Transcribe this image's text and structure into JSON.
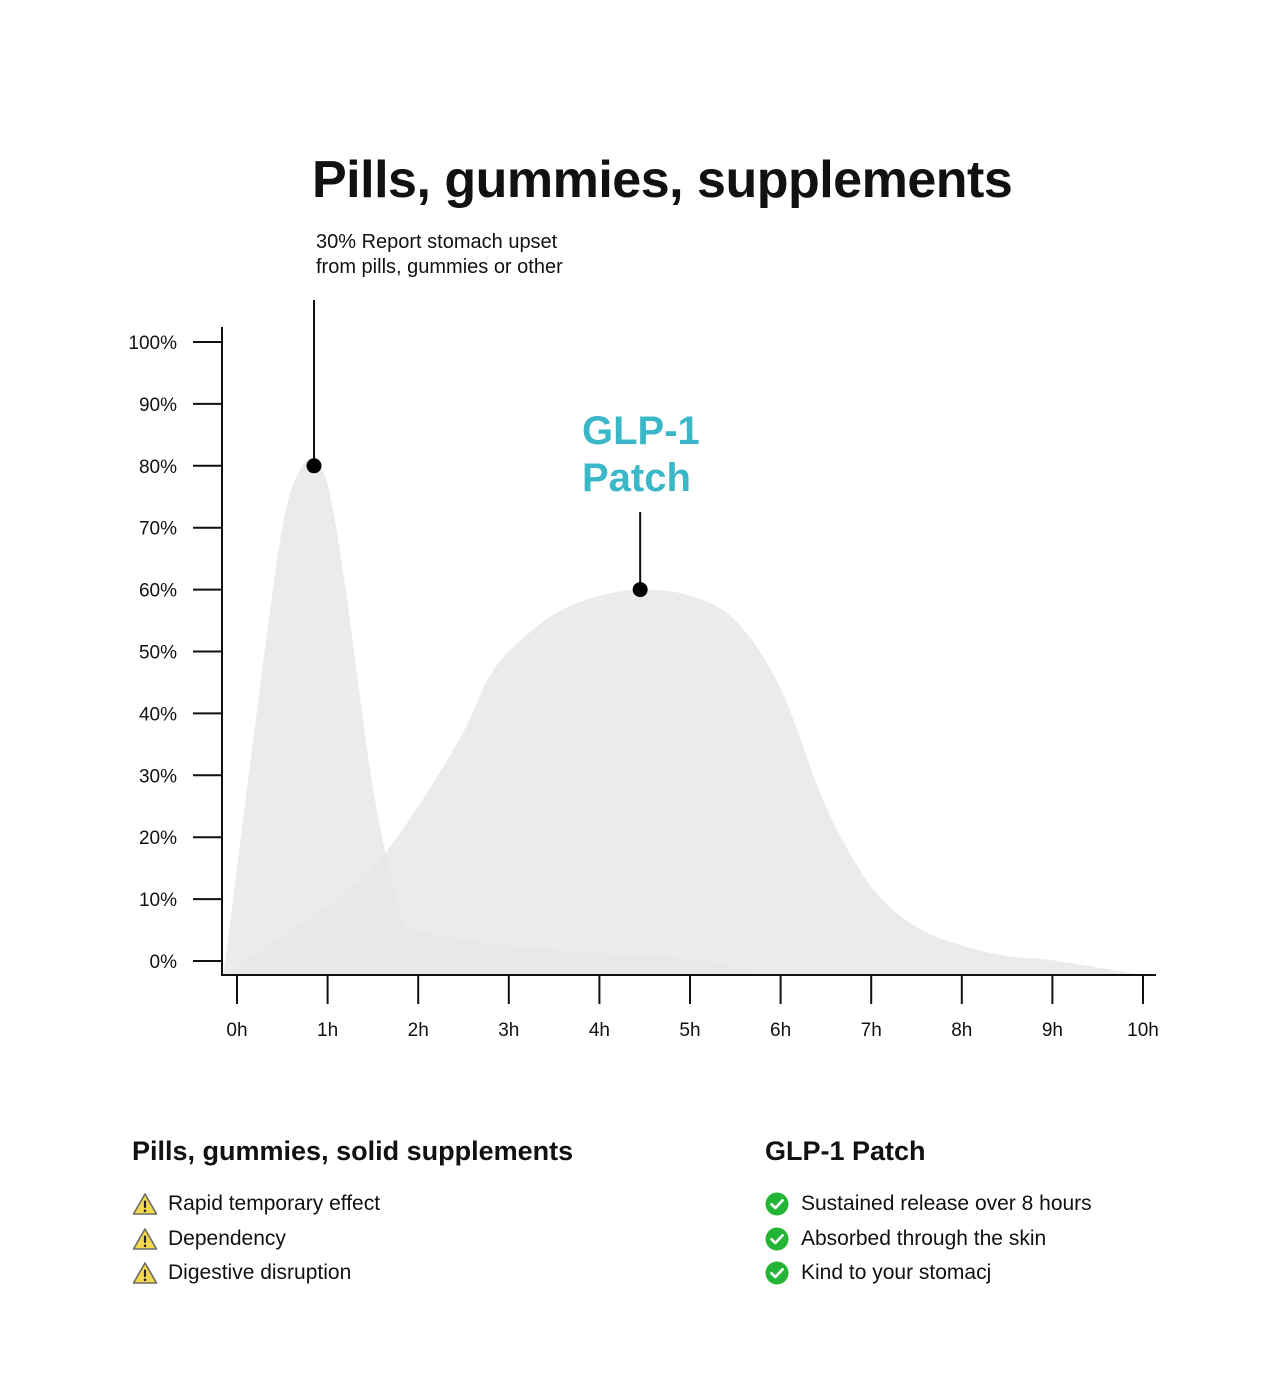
{
  "title": "Pills, gummies, supplements",
  "callout": {
    "line1": "30% Report stomach upset",
    "line2": "from pills, gummies or other"
  },
  "patch_label": {
    "line1": "GLP-1",
    "line2": "Patch",
    "color": "#3ab8c8"
  },
  "chart_data": {
    "type": "area",
    "title": "Pills, gummies, supplements",
    "xlabel": "",
    "ylabel": "",
    "x_tick_labels": [
      "0h",
      "1h",
      "2h",
      "3h",
      "4h",
      "5h",
      "6h",
      "7h",
      "8h",
      "9h",
      "10h"
    ],
    "y_tick_labels": [
      "0%",
      "10%",
      "20%",
      "30%",
      "40%",
      "50%",
      "60%",
      "70%",
      "80%",
      "90%",
      "100%"
    ],
    "xlim": [
      0,
      10
    ],
    "ylim": [
      0,
      100
    ],
    "grid": false,
    "fill_color": "#e6e6e6",
    "series": [
      {
        "name": "",
        "x": [
          -0.15,
          0.2,
          0.5,
          0.72,
          0.85,
          1.0,
          1.2,
          1.5,
          1.8,
          2.0,
          2.5,
          3.0,
          4.0,
          5.0,
          6.0,
          7.0,
          8.0,
          9.0,
          10.0
        ],
        "y": [
          0,
          38,
          70,
          80,
          80,
          77,
          60,
          28,
          8,
          5,
          3.5,
          2.5,
          1.2,
          0.3,
          0,
          0,
          0,
          0,
          0
        ],
        "peak": {
          "x": 0.85,
          "y": 80
        }
      },
      {
        "name": "GLP-1 Patch",
        "x": [
          -0.15,
          0.5,
          1.0,
          1.5,
          2.0,
          2.5,
          2.75,
          3.0,
          3.5,
          4.0,
          4.5,
          5.0,
          5.5,
          6.0,
          6.5,
          7.0,
          7.5,
          8.0,
          8.5,
          9.0,
          10.0
        ],
        "y": [
          0,
          4,
          9,
          15,
          25,
          37,
          45,
          50,
          56,
          59,
          60,
          59,
          55,
          44,
          25,
          12,
          5.5,
          2.5,
          0.8,
          0.1,
          0
        ],
        "peak": {
          "x": 4.45,
          "y": 60
        }
      }
    ]
  },
  "left_panel": {
    "heading": "Pills, gummies, solid supplements",
    "icon": "warning-icon",
    "icon_color": "#f3d84b",
    "items": [
      "Rapid temporary effect",
      "Dependency",
      "Digestive disruption"
    ]
  },
  "right_panel": {
    "heading": "GLP-1 Patch",
    "icon": "check-circle-icon",
    "icon_color": "#22b536",
    "items": [
      "Sustained release over 8 hours",
      "Absorbed through the skin",
      "Kind to your stomacj"
    ]
  }
}
